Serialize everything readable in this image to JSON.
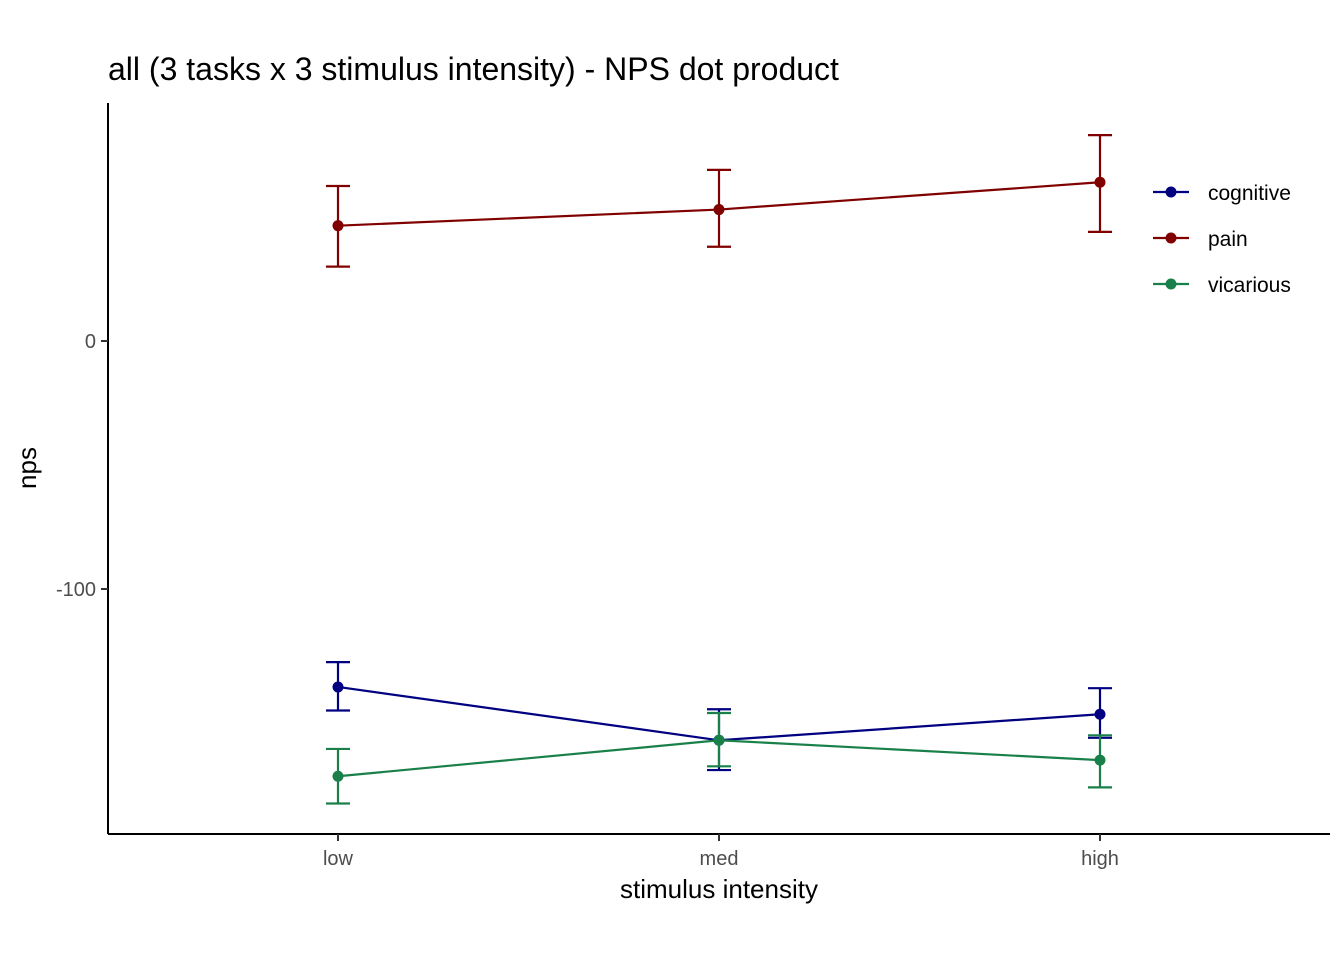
{
  "chart_data": {
    "type": "line",
    "title": "all  (3 tasks x 3 stimulus intensity) - NPS dot product",
    "xlabel": "stimulus intensity",
    "ylabel": "nps",
    "categories": [
      "low",
      "med",
      "high"
    ],
    "ylim": [
      -200,
      95
    ],
    "yticks": [
      0,
      -100
    ],
    "ytick_labels": [
      "0",
      "-100"
    ],
    "grid": false,
    "legend_position": "right",
    "series": [
      {
        "name": "cognitive",
        "color": "#000080",
        "values": [
          -139.5,
          -161,
          -150.5
        ],
        "error_low": [
          -149,
          -173,
          -160
        ],
        "error_high": [
          -129.5,
          -148.5,
          -140
        ]
      },
      {
        "name": "pain",
        "color": "#800000",
        "values": [
          46.5,
          53,
          64
        ],
        "error_low": [
          30,
          38,
          44
        ],
        "error_high": [
          62.5,
          69,
          83
        ]
      },
      {
        "name": "vicarious",
        "color": "#1a8049",
        "values": [
          -175.5,
          -161,
          -169
        ],
        "error_low": [
          -186.5,
          -171.5,
          -180
        ],
        "error_high": [
          -164.5,
          -150,
          -159
        ]
      }
    ]
  }
}
